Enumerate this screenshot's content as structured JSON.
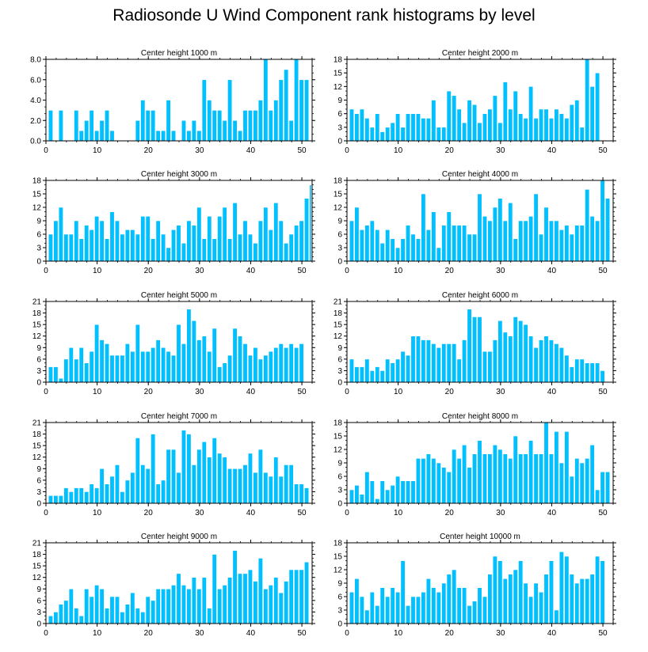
{
  "title": "Radiosonde U Wind Component rank histograms by level",
  "colors": {
    "bar": "#00c0ff",
    "bar_stroke": "#ffffff",
    "axis": "#000000",
    "background": "#ffffff"
  },
  "chart_data": [
    {
      "type": "bar",
      "title": "Center height 1000 m",
      "x": [
        1,
        2,
        3,
        4,
        5,
        6,
        7,
        8,
        9,
        10,
        11,
        12,
        13,
        14,
        15,
        16,
        17,
        18,
        19,
        20,
        21,
        22,
        23,
        24,
        25,
        26,
        27,
        28,
        29,
        30,
        31,
        32,
        33,
        34,
        35,
        36,
        37,
        38,
        39,
        40,
        41,
        42,
        43,
        44,
        45,
        46,
        47,
        48,
        49,
        50,
        51
      ],
      "values": [
        3,
        0,
        3,
        0,
        0,
        3,
        1,
        2,
        3,
        1,
        2,
        3,
        1,
        0,
        0,
        0,
        0,
        2,
        4,
        3,
        3,
        1,
        1,
        4,
        1,
        0,
        2,
        1,
        2,
        1,
        6,
        4,
        3,
        3,
        2,
        6,
        2,
        1,
        3,
        3,
        3,
        4,
        8,
        3,
        4,
        6,
        7,
        2,
        8,
        6,
        6
      ],
      "xlim": [
        0,
        52
      ],
      "ylim": [
        0,
        8
      ],
      "yticks": [
        0,
        2,
        4,
        6,
        8
      ],
      "ytick_labels": [
        "0.0",
        "2.0",
        "4.0",
        "6.0",
        "8.0"
      ],
      "xticks": [
        0,
        10,
        20,
        30,
        40,
        50
      ],
      "xtick_labels": [
        "0",
        "10",
        "20",
        "30",
        "40",
        "50"
      ]
    },
    {
      "type": "bar",
      "title": "Center height 2000 m",
      "x": [
        1,
        2,
        3,
        4,
        5,
        6,
        7,
        8,
        9,
        10,
        11,
        12,
        13,
        14,
        15,
        16,
        17,
        18,
        19,
        20,
        21,
        22,
        23,
        24,
        25,
        26,
        27,
        28,
        29,
        30,
        31,
        32,
        33,
        34,
        35,
        36,
        37,
        38,
        39,
        40,
        41,
        42,
        43,
        44,
        45,
        46,
        47,
        48,
        49,
        50,
        51
      ],
      "values": [
        7,
        6,
        7,
        5,
        3,
        6,
        2,
        3,
        4,
        6,
        3,
        6,
        6,
        6,
        5,
        5,
        9,
        3,
        3,
        11,
        10,
        7,
        4,
        9,
        8,
        4,
        6,
        7,
        10,
        4,
        13,
        7,
        11,
        6,
        5,
        12,
        5,
        7,
        7,
        5,
        7,
        6,
        5,
        8,
        9,
        3,
        18,
        12,
        15,
        0,
        0
      ],
      "xlim": [
        0,
        52
      ],
      "ylim": [
        0,
        18
      ],
      "yticks": [
        0,
        3,
        6,
        9,
        12,
        15,
        18
      ],
      "ytick_labels": [
        "0",
        "3",
        "6",
        "9",
        "12",
        "15",
        "18"
      ],
      "xticks": [
        0,
        10,
        20,
        30,
        40,
        50
      ],
      "xtick_labels": [
        "0",
        "10",
        "20",
        "30",
        "40",
        "50"
      ]
    },
    {
      "type": "bar",
      "title": "Center height 3000 m",
      "x": [
        1,
        2,
        3,
        4,
        5,
        6,
        7,
        8,
        9,
        10,
        11,
        12,
        13,
        14,
        15,
        16,
        17,
        18,
        19,
        20,
        21,
        22,
        23,
        24,
        25,
        26,
        27,
        28,
        29,
        30,
        31,
        32,
        33,
        34,
        35,
        36,
        37,
        38,
        39,
        40,
        41,
        42,
        43,
        44,
        45,
        46,
        47,
        48,
        49,
        50,
        51
      ],
      "values": [
        6,
        9,
        12,
        6,
        6,
        9,
        5,
        8,
        7,
        10,
        9,
        5,
        11,
        9,
        6,
        7,
        7,
        6,
        10,
        10,
        5,
        9,
        6,
        3,
        7,
        8,
        4,
        9,
        8,
        12,
        5,
        10,
        5,
        10,
        12,
        5,
        13,
        6,
        9,
        6,
        4,
        9,
        12,
        7,
        13,
        9,
        4,
        6,
        8,
        9,
        14
      ],
      "values_extra_last": 17,
      "xlim": [
        0,
        52
      ],
      "ylim": [
        0,
        18
      ],
      "yticks": [
        0,
        3,
        6,
        9,
        12,
        15,
        18
      ],
      "ytick_labels": [
        "0",
        "3",
        "6",
        "9",
        "12",
        "15",
        "18"
      ],
      "xticks": [
        0,
        10,
        20,
        30,
        40,
        50
      ],
      "xtick_labels": [
        "0",
        "10",
        "20",
        "30",
        "40",
        "50"
      ]
    },
    {
      "type": "bar",
      "title": "Center height 4000 m",
      "x": [
        1,
        2,
        3,
        4,
        5,
        6,
        7,
        8,
        9,
        10,
        11,
        12,
        13,
        14,
        15,
        16,
        17,
        18,
        19,
        20,
        21,
        22,
        23,
        24,
        25,
        26,
        27,
        28,
        29,
        30,
        31,
        32,
        33,
        34,
        35,
        36,
        37,
        38,
        39,
        40,
        41,
        42,
        43,
        44,
        45,
        46,
        47,
        48,
        49,
        50,
        51
      ],
      "values": [
        9,
        12,
        7,
        8,
        9,
        7,
        4,
        7,
        5,
        3,
        5,
        8,
        6,
        5,
        15,
        7,
        11,
        3,
        8,
        11,
        8,
        8,
        8,
        6,
        6,
        15,
        10,
        9,
        12,
        14,
        9,
        13,
        5,
        9,
        9,
        10,
        15,
        6,
        12,
        9,
        9,
        7,
        8,
        6,
        8,
        8,
        16,
        10,
        9,
        18,
        14
      ],
      "xlim": [
        0,
        52
      ],
      "ylim": [
        0,
        18
      ],
      "yticks": [
        0,
        3,
        6,
        9,
        12,
        15,
        18
      ],
      "ytick_labels": [
        "0",
        "3",
        "6",
        "9",
        "12",
        "15",
        "18"
      ],
      "xticks": [
        0,
        10,
        20,
        30,
        40,
        50
      ],
      "xtick_labels": [
        "0",
        "10",
        "20",
        "30",
        "40",
        "50"
      ]
    },
    {
      "type": "bar",
      "title": "Center height 5000 m",
      "x": [
        1,
        2,
        3,
        4,
        5,
        6,
        7,
        8,
        9,
        10,
        11,
        12,
        13,
        14,
        15,
        16,
        17,
        18,
        19,
        20,
        21,
        22,
        23,
        24,
        25,
        26,
        27,
        28,
        29,
        30,
        31,
        32,
        33,
        34,
        35,
        36,
        37,
        38,
        39,
        40,
        41,
        42,
        43,
        44,
        45,
        46,
        47,
        48,
        49,
        50,
        51
      ],
      "values": [
        4,
        4,
        1,
        6,
        9,
        6,
        9,
        5,
        8,
        15,
        11,
        10,
        7,
        7,
        7,
        10,
        8,
        15,
        8,
        8,
        9,
        11,
        9,
        8,
        7,
        15,
        10,
        19,
        16,
        11,
        12,
        8,
        14,
        4,
        5,
        7,
        14,
        12,
        10,
        7,
        9,
        6,
        7,
        8,
        9,
        10,
        9,
        10,
        9,
        10,
        0
      ],
      "xlim": [
        0,
        52
      ],
      "ylim": [
        0,
        21
      ],
      "yticks": [
        0,
        3,
        6,
        9,
        12,
        15,
        18,
        21
      ],
      "ytick_labels": [
        "0",
        "3",
        "6",
        "9",
        "12",
        "15",
        "18",
        "21"
      ],
      "xticks": [
        0,
        10,
        20,
        30,
        40,
        50
      ],
      "xtick_labels": [
        "0",
        "10",
        "20",
        "30",
        "40",
        "50"
      ]
    },
    {
      "type": "bar",
      "title": "Center height 6000 m",
      "x": [
        1,
        2,
        3,
        4,
        5,
        6,
        7,
        8,
        9,
        10,
        11,
        12,
        13,
        14,
        15,
        16,
        17,
        18,
        19,
        20,
        21,
        22,
        23,
        24,
        25,
        26,
        27,
        28,
        29,
        30,
        31,
        32,
        33,
        34,
        35,
        36,
        37,
        38,
        39,
        40,
        41,
        42,
        43,
        44,
        45,
        46,
        47,
        48,
        49,
        50,
        51
      ],
      "values": [
        6,
        4,
        4,
        6,
        3,
        4,
        3,
        6,
        5,
        6,
        8,
        7,
        12,
        12,
        11,
        11,
        10,
        9,
        10,
        10,
        10,
        6,
        11,
        19,
        17,
        17,
        8,
        8,
        11,
        16,
        13,
        12,
        17,
        16,
        15,
        12,
        9,
        11,
        12,
        11,
        10,
        9,
        7,
        4,
        6,
        6,
        5,
        5,
        5,
        3,
        0
      ],
      "xlim": [
        0,
        52
      ],
      "ylim": [
        0,
        21
      ],
      "yticks": [
        0,
        3,
        6,
        9,
        12,
        15,
        18,
        21
      ],
      "ytick_labels": [
        "0",
        "3",
        "6",
        "9",
        "12",
        "15",
        "18",
        "21"
      ],
      "xticks": [
        0,
        10,
        20,
        30,
        40,
        50
      ],
      "xtick_labels": [
        "0",
        "10",
        "20",
        "30",
        "40",
        "50"
      ]
    },
    {
      "type": "bar",
      "title": "Center height 7000 m",
      "x": [
        1,
        2,
        3,
        4,
        5,
        6,
        7,
        8,
        9,
        10,
        11,
        12,
        13,
        14,
        15,
        16,
        17,
        18,
        19,
        20,
        21,
        22,
        23,
        24,
        25,
        26,
        27,
        28,
        29,
        30,
        31,
        32,
        33,
        34,
        35,
        36,
        37,
        38,
        39,
        40,
        41,
        42,
        43,
        44,
        45,
        46,
        47,
        48,
        49,
        50,
        51
      ],
      "values": [
        2,
        2,
        2,
        4,
        3,
        4,
        4,
        3,
        5,
        4,
        9,
        5,
        7,
        10,
        3,
        6,
        8,
        17,
        10,
        9,
        18,
        5,
        6,
        14,
        14,
        8,
        19,
        18,
        10,
        14,
        16,
        12,
        17,
        13,
        12,
        9,
        9,
        9,
        10,
        13,
        8,
        14,
        8,
        7,
        12,
        7,
        10,
        10,
        5,
        5,
        4
      ],
      "xlim": [
        0,
        52
      ],
      "ylim": [
        0,
        21
      ],
      "yticks": [
        0,
        3,
        6,
        9,
        12,
        15,
        18,
        21
      ],
      "ytick_labels": [
        "0",
        "3",
        "6",
        "9",
        "12",
        "15",
        "18",
        "21"
      ],
      "xticks": [
        0,
        10,
        20,
        30,
        40,
        50
      ],
      "xtick_labels": [
        "0",
        "10",
        "20",
        "30",
        "40",
        "50"
      ]
    },
    {
      "type": "bar",
      "title": "Center height 8000 m",
      "x": [
        1,
        2,
        3,
        4,
        5,
        6,
        7,
        8,
        9,
        10,
        11,
        12,
        13,
        14,
        15,
        16,
        17,
        18,
        19,
        20,
        21,
        22,
        23,
        24,
        25,
        26,
        27,
        28,
        29,
        30,
        31,
        32,
        33,
        34,
        35,
        36,
        37,
        38,
        39,
        40,
        41,
        42,
        43,
        44,
        45,
        46,
        47,
        48,
        49,
        50,
        51
      ],
      "values": [
        3,
        4,
        2,
        7,
        5,
        1,
        5,
        3,
        4,
        6,
        5,
        5,
        5,
        10,
        10,
        11,
        10,
        9,
        8,
        7,
        12,
        10,
        13,
        8,
        11,
        14,
        11,
        11,
        13,
        12,
        11,
        10,
        15,
        11,
        11,
        14,
        11,
        11,
        18,
        11,
        16,
        9,
        16,
        6,
        10,
        9,
        10,
        13,
        3,
        7,
        7
      ],
      "xlim": [
        0,
        52
      ],
      "ylim": [
        0,
        18
      ],
      "yticks": [
        0,
        3,
        6,
        9,
        12,
        15,
        18
      ],
      "ytick_labels": [
        "0",
        "3",
        "6",
        "9",
        "12",
        "15",
        "18"
      ],
      "xticks": [
        0,
        10,
        20,
        30,
        40,
        50
      ],
      "xtick_labels": [
        "0",
        "10",
        "20",
        "30",
        "40",
        "50"
      ]
    },
    {
      "type": "bar",
      "title": "Center height 9000 m",
      "x": [
        1,
        2,
        3,
        4,
        5,
        6,
        7,
        8,
        9,
        10,
        11,
        12,
        13,
        14,
        15,
        16,
        17,
        18,
        19,
        20,
        21,
        22,
        23,
        24,
        25,
        26,
        27,
        28,
        29,
        30,
        31,
        32,
        33,
        34,
        35,
        36,
        37,
        38,
        39,
        40,
        41,
        42,
        43,
        44,
        45,
        46,
        47,
        48,
        49,
        50,
        51
      ],
      "values": [
        2,
        3,
        5,
        6,
        9,
        4,
        2,
        9,
        7,
        10,
        9,
        4,
        7,
        7,
        3,
        5,
        8,
        4,
        3,
        7,
        6,
        9,
        9,
        9,
        10,
        13,
        10,
        9,
        12,
        9,
        12,
        4,
        18,
        9,
        10,
        12,
        19,
        13,
        13,
        14,
        11,
        17,
        9,
        10,
        12,
        8,
        11,
        14,
        14,
        14,
        16
      ],
      "xlim": [
        0,
        52
      ],
      "ylim": [
        0,
        21
      ],
      "yticks": [
        0,
        3,
        6,
        9,
        12,
        15,
        18,
        21
      ],
      "ytick_labels": [
        "0",
        "3",
        "6",
        "9",
        "12",
        "15",
        "18",
        "21"
      ],
      "xticks": [
        0,
        10,
        20,
        30,
        40,
        50
      ],
      "xtick_labels": [
        "0",
        "10",
        "20",
        "30",
        "40",
        "50"
      ]
    },
    {
      "type": "bar",
      "title": "Center height 10000 m",
      "x": [
        1,
        2,
        3,
        4,
        5,
        6,
        7,
        8,
        9,
        10,
        11,
        12,
        13,
        14,
        15,
        16,
        17,
        18,
        19,
        20,
        21,
        22,
        23,
        24,
        25,
        26,
        27,
        28,
        29,
        30,
        31,
        32,
        33,
        34,
        35,
        36,
        37,
        38,
        39,
        40,
        41,
        42,
        43,
        44,
        45,
        46,
        47,
        48,
        49,
        50,
        51
      ],
      "values": [
        7,
        10,
        6,
        3,
        7,
        4,
        8,
        6,
        8,
        7,
        14,
        4,
        6,
        6,
        7,
        10,
        8,
        7,
        9,
        11,
        12,
        8,
        8,
        4,
        5,
        8,
        6,
        11,
        15,
        14,
        10,
        11,
        12,
        14,
        9,
        6,
        9,
        7,
        11,
        14,
        3,
        16,
        15,
        11,
        9,
        10,
        10,
        11,
        15,
        14,
        0
      ],
      "xlim": [
        0,
        52
      ],
      "ylim": [
        0,
        18
      ],
      "yticks": [
        0,
        3,
        6,
        9,
        12,
        15,
        18
      ],
      "ytick_labels": [
        "0",
        "3",
        "6",
        "9",
        "12",
        "15",
        "18"
      ],
      "xticks": [
        0,
        10,
        20,
        30,
        40,
        50
      ],
      "xtick_labels": [
        "0",
        "10",
        "20",
        "30",
        "40",
        "50"
      ]
    }
  ]
}
